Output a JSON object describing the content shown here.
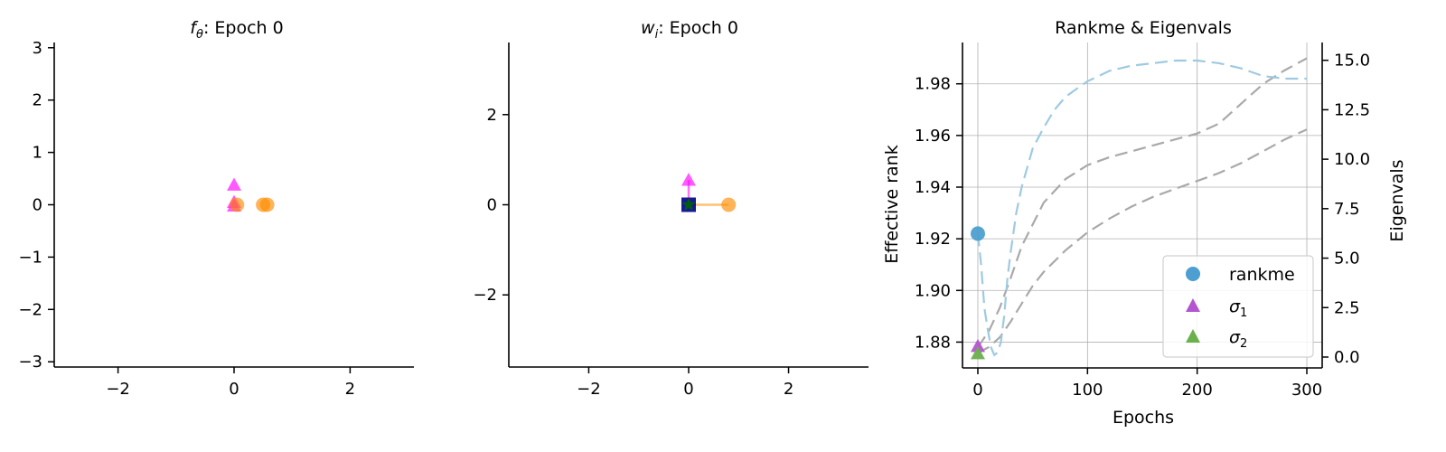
{
  "colors": {
    "magenta": "#ff00ff",
    "orange": "#ff8c00",
    "navy": "#00008b",
    "green": "#006400",
    "rankme": "#4c9fd0",
    "rankme_line": "#9ecae1",
    "sigma1": "#b455d0",
    "sigma2": "#6ab04c",
    "eig_line": "#a9a9a9",
    "grid": "#b0b0b0"
  },
  "chart_data": [
    {
      "type": "scatter",
      "title_var": "f",
      "title_sub": "θ",
      "title_rest": ": Epoch 0",
      "xlim": [
        -3.1,
        3.1
      ],
      "ylim": [
        -3.1,
        3.1
      ],
      "xticks": [
        -2,
        0,
        2
      ],
      "xtick_labels": [
        "−2",
        "0",
        "2"
      ],
      "yticks": [
        3,
        2,
        1,
        0,
        -1,
        -2,
        -3
      ],
      "ytick_labels": [
        "3",
        "2",
        "1",
        "0",
        "−1",
        "−2",
        "−3"
      ],
      "points": [
        {
          "x": 0.0,
          "y": 0.38,
          "marker": "triangle",
          "color": "magenta"
        },
        {
          "x": 0.0,
          "y": 0.05,
          "marker": "triangle",
          "color": "magenta"
        },
        {
          "x": 0.0,
          "y": -0.02,
          "marker": "triangle",
          "color": "magenta"
        },
        {
          "x": 0.05,
          "y": 0.0,
          "marker": "circle",
          "color": "orange"
        },
        {
          "x": 0.5,
          "y": 0.0,
          "marker": "circle",
          "color": "orange"
        },
        {
          "x": 0.57,
          "y": 0.0,
          "marker": "circle",
          "color": "orange"
        }
      ]
    },
    {
      "type": "scatter",
      "title_var": "w",
      "title_sub": "i",
      "title_rest": ": Epoch 0",
      "xlim": [
        -3.6,
        3.6
      ],
      "ylim": [
        -3.6,
        3.6
      ],
      "xticks": [
        -2,
        0,
        2
      ],
      "xtick_labels": [
        "−2",
        "0",
        "2"
      ],
      "yticks": [
        2,
        0,
        -2
      ],
      "ytick_labels": [
        "2",
        "0",
        "−2"
      ],
      "arrows": [
        {
          "x1": 0,
          "y1": 0,
          "x2": 0.8,
          "y2": 0,
          "color": "orange"
        },
        {
          "x1": 0,
          "y1": 0,
          "x2": 0,
          "y2": 0.55,
          "color": "magenta"
        }
      ],
      "points": [
        {
          "x": 0.8,
          "y": 0.0,
          "marker": "circle",
          "color": "orange"
        },
        {
          "x": 0.0,
          "y": 0.55,
          "marker": "triangle",
          "color": "magenta"
        },
        {
          "x": 0.0,
          "y": 0.0,
          "marker": "square",
          "color": "navy"
        },
        {
          "x": 0.0,
          "y": 0.0,
          "marker": "star",
          "color": "green"
        }
      ]
    },
    {
      "type": "line",
      "title": "Rankme & Eigenvals",
      "xlabel": "Epochs",
      "ylabel": "Effective rank",
      "y2label": "Eigenvals",
      "xlim": [
        -14,
        314
      ],
      "ylim": [
        1.87,
        1.996
      ],
      "y2lim": [
        -0.55,
        15.9
      ],
      "grid": true,
      "legend_position": "lower-right",
      "xticks": [
        0,
        100,
        200,
        300
      ],
      "xtick_labels": [
        "0",
        "100",
        "200",
        "300"
      ],
      "yticks": [
        1.88,
        1.9,
        1.92,
        1.94,
        1.96,
        1.98
      ],
      "ytick_labels": [
        "1.88",
        "1.90",
        "1.92",
        "1.94",
        "1.96",
        "1.98"
      ],
      "y2ticks": [
        0,
        2.5,
        5,
        7.5,
        10,
        12.5,
        15
      ],
      "y2tick_labels": [
        "0.0",
        "2.5",
        "5.0",
        "7.5",
        "10.0",
        "12.5",
        "15.0"
      ],
      "rankme_curve": {
        "x": [
          0,
          3,
          6,
          9,
          12,
          15,
          18,
          21,
          24,
          27,
          30,
          35,
          40,
          50,
          60,
          70,
          80,
          90,
          100,
          120,
          140,
          160,
          180,
          200,
          220,
          240,
          260,
          280,
          300
        ],
        "y": [
          1.922,
          1.91,
          1.893,
          1.885,
          1.878,
          1.875,
          1.876,
          1.88,
          1.89,
          1.905,
          1.915,
          1.93,
          1.94,
          1.955,
          1.963,
          1.97,
          1.975,
          1.978,
          1.981,
          1.985,
          1.987,
          1.988,
          1.989,
          1.989,
          1.988,
          1.986,
          1.983,
          1.982,
          1.982
        ]
      },
      "eig_curves": [
        {
          "x": [
            0,
            10,
            20,
            30,
            40,
            60,
            80,
            100,
            120,
            140,
            160,
            180,
            200,
            220,
            240,
            260,
            280,
            300
          ],
          "y": [
            0.5,
            1.3,
            2.5,
            4.0,
            5.6,
            7.8,
            9.0,
            9.7,
            10.1,
            10.4,
            10.7,
            11.0,
            11.3,
            11.8,
            12.8,
            13.8,
            14.5,
            15.1
          ]
        },
        {
          "x": [
            0,
            10,
            20,
            30,
            40,
            50,
            60,
            80,
            100,
            120,
            140,
            160,
            180,
            200,
            220,
            240,
            260,
            280,
            300
          ],
          "y": [
            0.2,
            0.5,
            1.0,
            1.8,
            2.7,
            3.6,
            4.3,
            5.4,
            6.3,
            7.0,
            7.6,
            8.1,
            8.5,
            8.9,
            9.3,
            9.8,
            10.4,
            11.0,
            11.5
          ]
        }
      ],
      "markers": [
        {
          "name": "rankme",
          "x": 0,
          "y": 1.922,
          "axis": "left",
          "marker": "circle",
          "color": "rankme"
        },
        {
          "name": "sigma1",
          "x": 0,
          "y": 0.55,
          "axis": "right",
          "marker": "triangle",
          "color": "sigma1"
        },
        {
          "name": "sigma2",
          "x": 0,
          "y": 0.18,
          "axis": "right",
          "marker": "triangle",
          "color": "sigma2"
        }
      ],
      "legend": [
        {
          "label": "rankme",
          "sub": "",
          "marker": "circle",
          "color": "rankme"
        },
        {
          "label": "σ",
          "sub": "1",
          "marker": "triangle",
          "color": "sigma1"
        },
        {
          "label": "σ",
          "sub": "2",
          "marker": "triangle",
          "color": "sigma2"
        }
      ]
    }
  ]
}
